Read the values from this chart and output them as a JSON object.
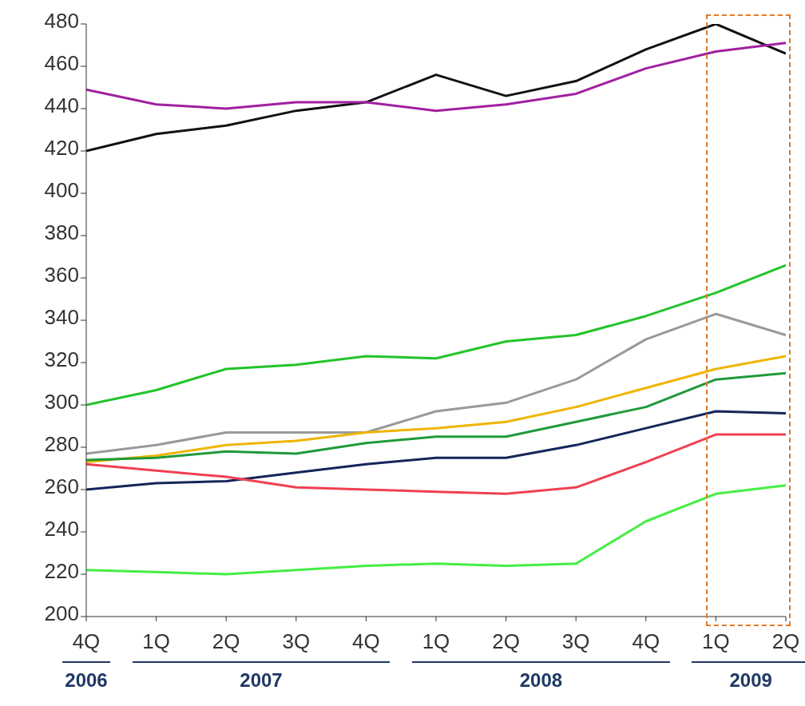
{
  "chart_data": {
    "type": "line",
    "categories": [
      "4Q",
      "1Q",
      "2Q",
      "3Q",
      "4Q",
      "1Q",
      "2Q",
      "3Q",
      "4Q",
      "1Q",
      "2Q"
    ],
    "ylim": [
      200,
      480
    ],
    "yticks": [
      200,
      220,
      240,
      260,
      280,
      300,
      320,
      340,
      360,
      380,
      400,
      420,
      440,
      460,
      480
    ],
    "grid": false,
    "legend": false,
    "marker": "none",
    "line_style": "solid",
    "annotations": [
      "2006",
      "2007",
      "2008",
      "2009"
    ],
    "series": [
      {
        "color": "#111111",
        "values": [
          420,
          428,
          432,
          439,
          443,
          456,
          446,
          453,
          468,
          480,
          466
        ]
      },
      {
        "color": "#a020a0",
        "values": [
          449,
          442,
          440,
          443,
          443,
          439,
          442,
          447,
          459,
          467,
          471
        ]
      },
      {
        "color": "#22c42a",
        "values": [
          300,
          307,
          317,
          319,
          323,
          322,
          330,
          333,
          342,
          353,
          366
        ]
      },
      {
        "color": "#999999",
        "values": [
          277,
          281,
          287,
          287,
          287,
          297,
          301,
          312,
          331,
          343,
          333
        ]
      },
      {
        "color": "#f0b400",
        "values": [
          273,
          276,
          281,
          283,
          287,
          289,
          292,
          299,
          308,
          317,
          323
        ]
      },
      {
        "color": "#1f9a3a",
        "values": [
          274,
          275,
          278,
          277,
          282,
          285,
          285,
          292,
          299,
          312,
          315
        ]
      },
      {
        "color": "#15245a",
        "values": [
          260,
          263,
          264,
          268,
          272,
          275,
          275,
          281,
          289,
          297,
          296
        ]
      },
      {
        "color": "#f04050",
        "values": [
          272,
          269,
          266,
          261,
          260,
          259,
          258,
          261,
          273,
          286,
          286
        ]
      },
      {
        "color": "#44ee44",
        "values": [
          222,
          221,
          220,
          222,
          224,
          225,
          224,
          225,
          245,
          258,
          262
        ]
      }
    ]
  }
}
